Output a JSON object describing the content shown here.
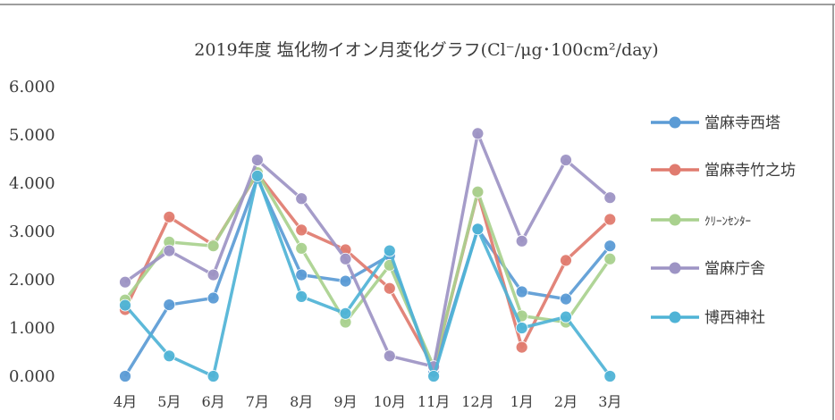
{
  "chart_data": {
    "type": "line",
    "title": "2019年度 塩化物イオン月変化グラフ(Cl⁻/μg･100cm²/day)",
    "categories": [
      "4月",
      "5月",
      "6月",
      "7月",
      "8月",
      "9月",
      "10月",
      "11月",
      "12月",
      "1月",
      "2月",
      "3月"
    ],
    "ylim": [
      0,
      6
    ],
    "yticks": [
      "0.000",
      "1.000",
      "2.000",
      "3.000",
      "4.000",
      "5.000",
      "6.000"
    ],
    "grid": false,
    "legend_position": "right",
    "series": [
      {
        "name": "當麻寺西塔",
        "color": "#5b9bd5",
        "values": [
          0.0,
          1.48,
          1.62,
          4.1,
          2.1,
          1.97,
          2.5,
          0.1,
          3.05,
          1.75,
          1.6,
          2.7
        ]
      },
      {
        "name": "當麻寺竹之坊",
        "color": "#e07b6f",
        "values": [
          1.38,
          3.3,
          2.72,
          4.2,
          3.03,
          2.62,
          1.82,
          0.18,
          3.8,
          0.6,
          2.4,
          3.25
        ]
      },
      {
        "name": "ｸﾘｰﾝｾﾝﾀｰ",
        "color": "#a9d18e",
        "values": [
          1.58,
          2.78,
          2.7,
          4.22,
          2.65,
          1.12,
          2.3,
          0.2,
          3.82,
          1.25,
          1.12,
          2.43
        ]
      },
      {
        "name": "當麻庁舎",
        "color": "#9d94c4",
        "values": [
          1.95,
          2.6,
          2.1,
          4.48,
          3.68,
          2.43,
          0.42,
          0.2,
          5.03,
          2.8,
          4.48,
          3.7
        ]
      },
      {
        "name": "博西神社",
        "color": "#4fb3d6",
        "values": [
          1.47,
          0.42,
          0.0,
          4.15,
          1.65,
          1.3,
          2.6,
          0.0,
          3.05,
          1.0,
          1.23,
          0.0
        ]
      }
    ]
  }
}
